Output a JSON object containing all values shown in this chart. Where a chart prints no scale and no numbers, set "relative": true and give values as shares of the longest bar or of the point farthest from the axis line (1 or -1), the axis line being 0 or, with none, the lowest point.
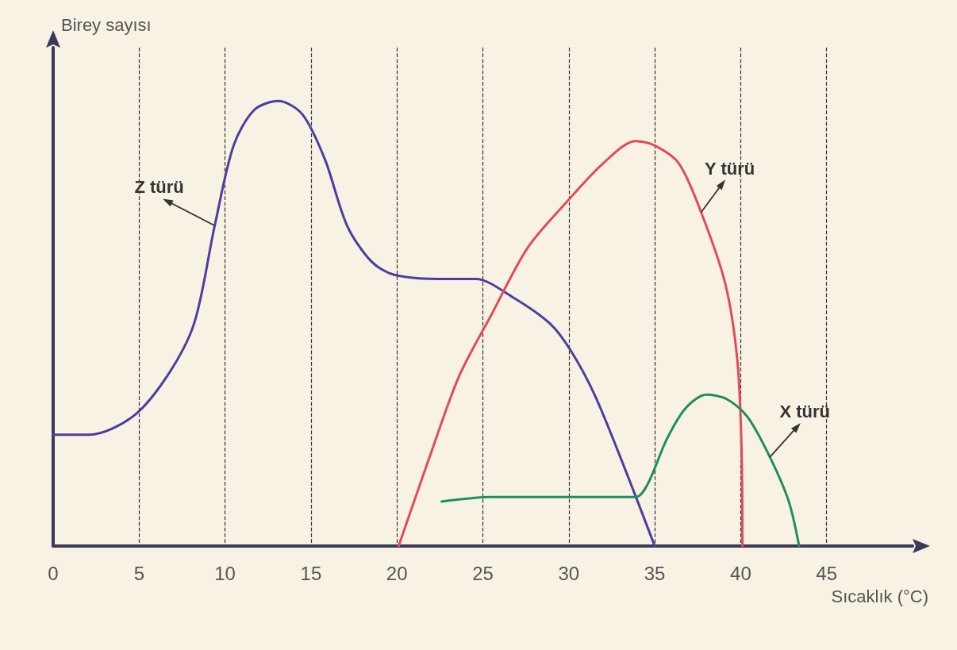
{
  "chart_data": {
    "type": "line",
    "relative": true,
    "xlabel": "Sıcaklık (°C)",
    "ylabel": "Birey sayısı",
    "xlim": [
      0,
      50
    ],
    "xticks": [
      0,
      5,
      10,
      15,
      20,
      25,
      30,
      35,
      40,
      45
    ],
    "grid": "x",
    "line_style": "solid",
    "marker": "none",
    "legend": false,
    "series": [
      {
        "name": "Z türü",
        "color": "#4b3f9e",
        "x": [
          0,
          2.1,
          4.6,
          6.6,
          8.2,
          9.4,
          10.5,
          11.7,
          13.1,
          14.5,
          15.8,
          17.1,
          18.5,
          19.8,
          22.4,
          24.6,
          26.7,
          28.9,
          30.1,
          31.5,
          33.2,
          35
        ],
        "values": [
          0.25,
          0.25,
          0.29,
          0.38,
          0.5,
          0.72,
          0.9,
          0.98,
          1.0,
          0.97,
          0.87,
          0.72,
          0.64,
          0.61,
          0.6,
          0.6,
          0.56,
          0.5,
          0.44,
          0.34,
          0.18,
          0
        ]
      },
      {
        "name": "Y türü",
        "color": "#e24b58",
        "x": [
          20.1,
          21.9,
          23.6,
          25.5,
          27.6,
          29.8,
          32.0,
          33.9,
          35,
          36.4,
          37.7,
          39.1,
          39.8,
          40.05,
          40.1
        ],
        "values": [
          0,
          0.2,
          0.38,
          0.52,
          0.67,
          0.77,
          0.86,
          0.91,
          0.9,
          0.86,
          0.75,
          0.59,
          0.42,
          0.22,
          0
        ]
      },
      {
        "name": "X türü",
        "color": "#1e8f5c",
        "x": [
          22.6,
          25.5,
          29.8,
          33.9,
          34.6,
          35.7,
          36.8,
          38.0,
          39.2,
          40.4,
          41.7,
          42.8,
          43.4
        ],
        "values": [
          0.1,
          0.11,
          0.11,
          0.11,
          0.14,
          0.24,
          0.31,
          0.34,
          0.33,
          0.29,
          0.2,
          0.1,
          0
        ]
      }
    ]
  }
}
